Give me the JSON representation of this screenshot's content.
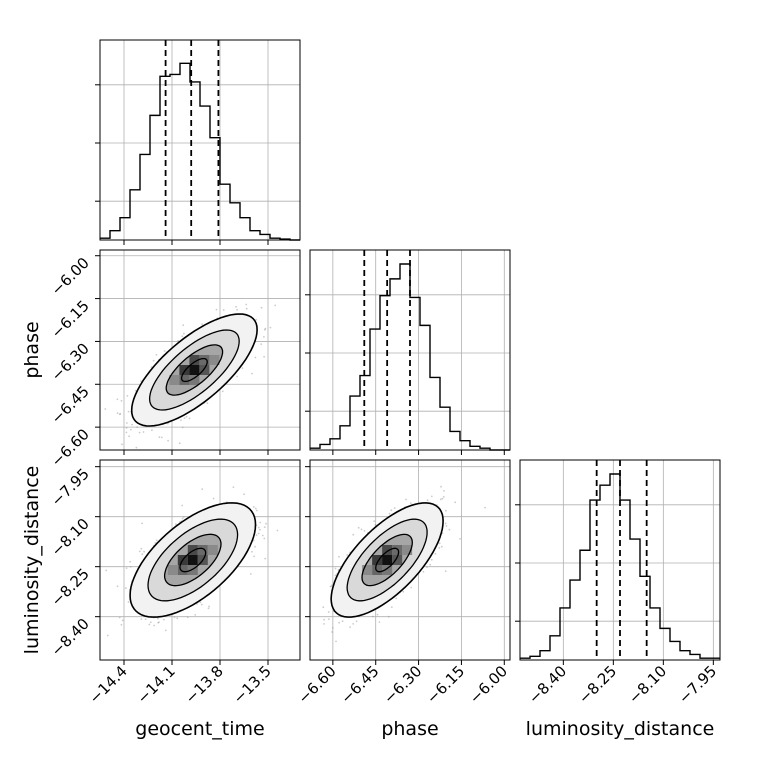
{
  "chart_data": {
    "type": "corner",
    "parameters": [
      "geocent_time",
      "phase",
      "luminosity_distance"
    ],
    "grid": true,
    "ranges": {
      "geocent_time": [
        -14.55,
        -13.3
      ],
      "phase": [
        -6.68,
        -5.98
      ],
      "luminosity_distance": [
        -8.53,
        -7.93
      ]
    },
    "ticks": {
      "geocent_time": {
        "values": [
          -14.4,
          -14.1,
          -13.8,
          -13.5
        ],
        "labels": [
          "−14.4",
          "−14.1",
          "−13.8",
          "−13.5"
        ]
      },
      "phase": {
        "values": [
          -6.6,
          -6.45,
          -6.3,
          -6.15,
          -6.0
        ],
        "labels": [
          "−6.60",
          "−6.45",
          "−6.30",
          "−6.15",
          "−6.00"
        ]
      },
      "luminosity_distance": {
        "values": [
          -8.4,
          -8.25,
          -8.1,
          -7.95
        ],
        "labels": [
          "−8.40",
          "−8.25",
          "−8.10",
          "−7.95"
        ]
      }
    },
    "histograms": [
      {
        "parameter": "geocent_time",
        "quantiles": [
          -14.14,
          -13.98,
          -13.81
        ],
        "bin_start": -14.55,
        "bin_width": 0.0625,
        "counts": [
          0.01,
          0.05,
          0.12,
          0.27,
          0.46,
          0.67,
          0.88,
          0.89,
          0.95,
          0.85,
          0.72,
          0.55,
          0.3,
          0.2,
          0.12,
          0.05,
          0.03,
          0.01,
          0.005,
          0.0
        ]
      },
      {
        "parameter": "phase",
        "quantiles": [
          -6.49,
          -6.41,
          -6.33
        ],
        "bin_start": -6.68,
        "bin_width": 0.035,
        "counts": [
          0.01,
          0.03,
          0.06,
          0.13,
          0.29,
          0.4,
          0.65,
          0.83,
          0.92,
          1.0,
          0.82,
          0.67,
          0.39,
          0.23,
          0.1,
          0.05,
          0.02,
          0.01,
          0.0,
          0.0
        ]
      },
      {
        "parameter": "luminosity_distance",
        "quantiles": [
          -8.3,
          -8.23,
          -8.15
        ],
        "bin_start": -8.53,
        "bin_width": 0.03,
        "counts": [
          0.01,
          0.02,
          0.05,
          0.13,
          0.28,
          0.43,
          0.59,
          0.86,
          0.94,
          1.0,
          0.86,
          0.65,
          0.45,
          0.28,
          0.17,
          0.1,
          0.05,
          0.03,
          0.01,
          0.01
        ]
      }
    ],
    "pairs": [
      {
        "x": "geocent_time",
        "y": "phase",
        "center": [
          -13.96,
          -6.4
        ],
        "sigma": [
          0.16,
          0.08
        ],
        "rho": 0.72
      },
      {
        "x": "geocent_time",
        "y": "luminosity_distance",
        "center": [
          -13.97,
          -8.23
        ],
        "sigma": [
          0.16,
          0.07
        ],
        "rho": 0.62
      },
      {
        "x": "phase",
        "y": "luminosity_distance",
        "center": [
          -6.41,
          -8.23
        ],
        "sigma": [
          0.08,
          0.07
        ],
        "rho": 0.68
      }
    ]
  }
}
